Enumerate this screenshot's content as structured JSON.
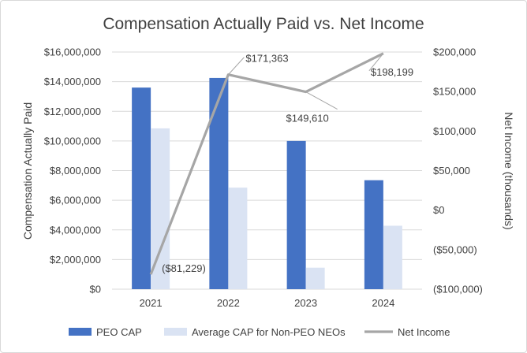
{
  "chart_data": {
    "type": "bar+line",
    "title": "Compensation Actually Paid vs. Net Income",
    "categories": [
      "2021",
      "2022",
      "2023",
      "2024"
    ],
    "series": [
      {
        "name": "PEO CAP",
        "axis": "left",
        "type": "bar",
        "color": "#4472c4",
        "values": [
          13600000,
          14250000,
          10000000,
          7350000
        ]
      },
      {
        "name": "Average CAP for Non-PEO NEOs",
        "axis": "left",
        "type": "bar",
        "color": "#dae3f3",
        "values": [
          10850000,
          6850000,
          1450000,
          4280000
        ]
      },
      {
        "name": "Net Income",
        "axis": "right",
        "type": "line",
        "color": "#a6a6a6",
        "values": [
          -81229,
          171363,
          149610,
          198199
        ],
        "labels": [
          "($81,229)",
          "$171,363",
          "$149,610",
          "$198,199"
        ]
      }
    ],
    "ylabel_left": "Compensation Actually Paid",
    "ylabel_right": "Net Income (thousands)",
    "ylim_left": [
      0,
      16000000
    ],
    "ylim_right": [
      -100000,
      200000
    ],
    "yticks_left": [
      "$0",
      "$2,000,000",
      "$4,000,000",
      "$6,000,000",
      "$8,000,000",
      "$10,000,000",
      "$12,000,000",
      "$14,000,000",
      "$16,000,000"
    ],
    "yticks_right": [
      "($100,000)",
      "($50,000)",
      "$0",
      "$50,000",
      "$100,000",
      "$150,000",
      "$200,000"
    ],
    "legend": [
      "PEO CAP",
      "Average CAP for Non-PEO NEOs",
      "Net Income"
    ],
    "legend_position": "bottom",
    "grid": true
  }
}
